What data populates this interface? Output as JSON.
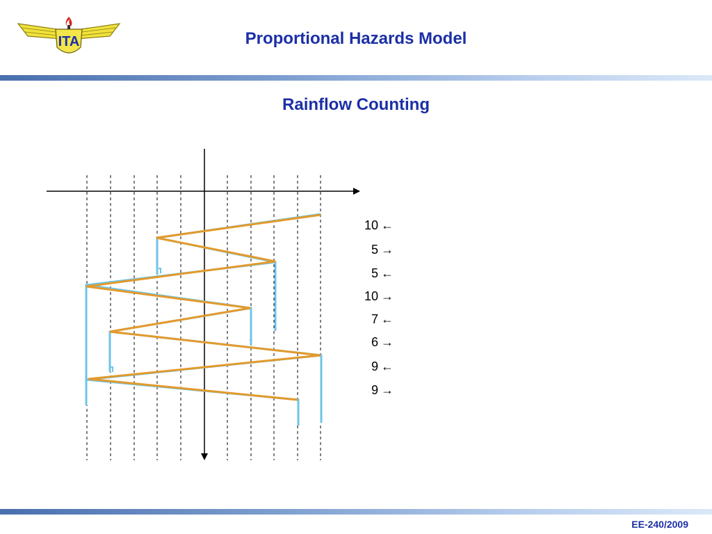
{
  "header": {
    "title": "Proportional Hazards Model",
    "logo_text": "ITA",
    "colors": {
      "title": "#1b2fa6",
      "band": "#7e9fd0"
    }
  },
  "slide": {
    "title": "Rainflow Counting"
  },
  "diagram": {
    "colors": {
      "blue_path": "#6ec4e8",
      "orange_path": "#e39a2c",
      "axes": "#000000"
    },
    "half_cycles": [
      {
        "range": "10",
        "direction": "←"
      },
      {
        "range": "5",
        "direction": "→"
      },
      {
        "range": "5",
        "direction": "←"
      },
      {
        "range": "10",
        "direction": "→"
      },
      {
        "range": "7",
        "direction": "←"
      },
      {
        "range": "6",
        "direction": "→"
      },
      {
        "range": "9",
        "direction": "←"
      },
      {
        "range": "9",
        "direction": "→"
      }
    ]
  },
  "footer": {
    "course": "EE-240/2009"
  }
}
